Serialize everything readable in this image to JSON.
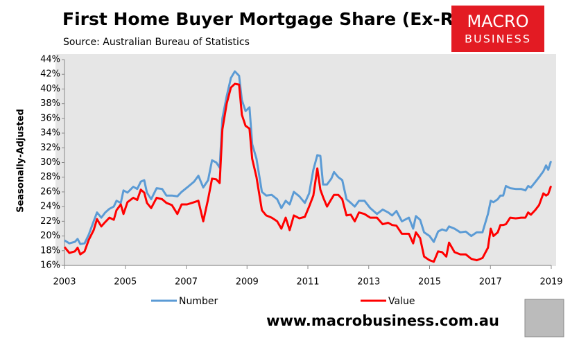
{
  "chart_data": {
    "type": "line",
    "title": "First Home Buyer Mortgage Share (Ex-Refi)",
    "subtitle": "Source: Australian Bureau of Statistics",
    "y_label": "Seasonally-Adjusted",
    "logo": [
      "MACRO",
      "BUSINESS"
    ],
    "footer": "www.macrobusiness.com.au",
    "legend": "bottom",
    "grid": false,
    "xlim": [
      2003,
      2019
    ],
    "xticks": [
      2003,
      2005,
      2007,
      2009,
      2011,
      2013,
      2015,
      2017,
      2019
    ],
    "ylim": [
      16,
      44
    ],
    "yticks": [
      {
        "value": 16,
        "label": "16%"
      },
      {
        "value": 18,
        "label": "18%"
      },
      {
        "value": 20,
        "label": "20%"
      },
      {
        "value": 22,
        "label": "22%"
      },
      {
        "value": 24,
        "label": "24%"
      },
      {
        "value": 26,
        "label": "26%"
      },
      {
        "value": 28,
        "label": "28%"
      },
      {
        "value": 30,
        "label": "30%"
      },
      {
        "value": 32,
        "label": "32%"
      },
      {
        "value": 34,
        "label": "34%"
      },
      {
        "value": 36,
        "label": "36%"
      },
      {
        "value": 38,
        "label": "38%"
      },
      {
        "value": 40,
        "label": "40%"
      },
      {
        "value": 42,
        "label": "42%"
      },
      {
        "value": 44,
        "label": "44%"
      }
    ],
    "x": [
      2003,
      2003.16,
      2003.34,
      2003.43,
      2003.52,
      2003.66,
      2003.8,
      2003.96,
      2004.07,
      2004.21,
      2004.34,
      2004.48,
      2004.62,
      2004.71,
      2004.85,
      2004.94,
      2005.07,
      2005.26,
      2005.39,
      2005.51,
      2005.62,
      2005.71,
      2005.85,
      2006.03,
      2006.21,
      2006.35,
      2006.53,
      2006.71,
      2006.85,
      2007.03,
      2007.26,
      2007.4,
      2007.56,
      2007.72,
      2007.85,
      2007.99,
      2008.1,
      2008.19,
      2008.33,
      2008.47,
      2008.6,
      2008.74,
      2008.83,
      2008.95,
      2009.08,
      2009.17,
      2009.31,
      2009.49,
      2009.63,
      2009.81,
      2009.99,
      2010.13,
      2010.27,
      2010.4,
      2010.54,
      2010.72,
      2010.9,
      2011.04,
      2011.18,
      2011.31,
      2011.41,
      2011.5,
      2011.63,
      2011.77,
      2011.86,
      2012,
      2012.13,
      2012.27,
      2012.41,
      2012.54,
      2012.68,
      2012.86,
      2013.05,
      2013.27,
      2013.46,
      2013.64,
      2013.77,
      2013.91,
      2014.09,
      2014.32,
      2014.46,
      2014.55,
      2014.69,
      2014.82,
      2015,
      2015.14,
      2015.28,
      2015.41,
      2015.55,
      2015.64,
      2015.82,
      2016.01,
      2016.19,
      2016.37,
      2016.55,
      2016.74,
      2016.92,
      2017.01,
      2017.1,
      2017.24,
      2017.33,
      2017.42,
      2017.51,
      2017.65,
      2017.83,
      2018.01,
      2018.15,
      2018.24,
      2018.33,
      2018.47,
      2018.6,
      2018.74,
      2018.83,
      2018.9,
      2018.99
    ],
    "series": [
      {
        "name": "Number",
        "color": "#5b9bd5",
        "values": [
          19.4,
          19.0,
          19.2,
          19.6,
          18.9,
          19.0,
          20.2,
          22.0,
          23.2,
          22.5,
          23.2,
          23.7,
          24.0,
          24.8,
          24.5,
          26.2,
          25.9,
          26.7,
          26.4,
          27.4,
          27.6,
          25.9,
          25.0,
          26.5,
          26.4,
          25.5,
          25.5,
          25.4,
          26.0,
          26.6,
          27.4,
          28.2,
          26.6,
          27.6,
          30.3,
          30.0,
          29.3,
          36.0,
          39.0,
          41.5,
          42.4,
          41.8,
          38.5,
          37.0,
          37.5,
          32.5,
          30.5,
          26.0,
          25.5,
          25.6,
          25.0,
          23.8,
          24.8,
          24.3,
          26.0,
          25.4,
          24.5,
          25.8,
          29.0,
          31.0,
          30.9,
          27.0,
          27.0,
          27.8,
          28.7,
          28.0,
          27.6,
          25.0,
          24.5,
          24.0,
          24.8,
          24.8,
          23.8,
          23.0,
          23.6,
          23.2,
          22.8,
          23.4,
          22.0,
          22.5,
          21.0,
          22.7,
          22.2,
          20.5,
          20.0,
          19.2,
          20.6,
          20.9,
          20.7,
          21.3,
          21.0,
          20.5,
          20.6,
          20.0,
          20.5,
          20.5,
          23.0,
          24.8,
          24.6,
          25.0,
          25.5,
          25.5,
          26.8,
          26.5,
          26.4,
          26.4,
          26.2,
          26.8,
          26.6,
          27.3,
          28.0,
          28.8,
          29.6,
          29.0,
          30.2
        ]
      },
      {
        "name": "Value",
        "color": "#ff0000",
        "values": [
          18.5,
          17.7,
          17.9,
          18.4,
          17.5,
          17.9,
          19.5,
          20.8,
          22.3,
          21.3,
          21.9,
          22.5,
          22.2,
          23.5,
          24.3,
          23.0,
          24.6,
          25.2,
          24.9,
          26.3,
          25.9,
          24.5,
          23.8,
          25.2,
          25.0,
          24.5,
          24.2,
          23.0,
          24.3,
          24.3,
          24.6,
          24.8,
          22.0,
          25.0,
          27.8,
          27.7,
          27.2,
          34.5,
          38.0,
          40.2,
          40.7,
          40.6,
          36.5,
          35.0,
          34.6,
          30.5,
          28.0,
          23.5,
          22.8,
          22.5,
          22.0,
          21.0,
          22.5,
          20.8,
          22.8,
          22.4,
          22.6,
          24.0,
          25.5,
          29.2,
          26.3,
          25.3,
          24.0,
          25.0,
          25.6,
          25.6,
          25.0,
          22.8,
          22.9,
          22.0,
          23.2,
          23.0,
          22.5,
          22.5,
          21.6,
          21.8,
          21.5,
          21.4,
          20.3,
          20.3,
          19.0,
          20.5,
          19.7,
          17.2,
          16.7,
          16.5,
          17.9,
          17.8,
          17.2,
          19.1,
          17.8,
          17.5,
          17.5,
          16.9,
          16.7,
          17.0,
          18.4,
          21.0,
          20.0,
          20.5,
          21.5,
          21.5,
          21.6,
          22.5,
          22.4,
          22.5,
          22.5,
          23.2,
          22.9,
          23.5,
          24.2,
          25.8,
          25.5,
          25.7,
          26.8
        ]
      }
    ]
  }
}
